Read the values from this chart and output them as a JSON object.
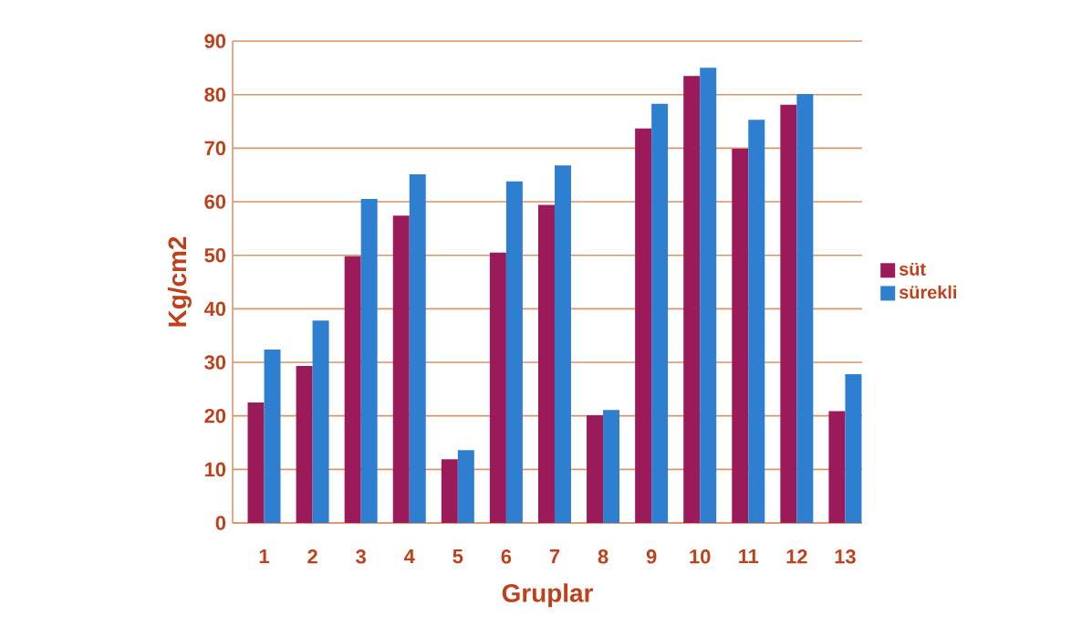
{
  "chart_data": {
    "type": "bar",
    "xlabel": "Gruplar",
    "ylabel": "Kg/cm2",
    "categories": [
      "1",
      "2",
      "3",
      "4",
      "5",
      "6",
      "7",
      "8",
      "9",
      "10",
      "11",
      "12",
      "13"
    ],
    "series": [
      {
        "name": "süt",
        "color": "#9b1b5a",
        "values": [
          22.5,
          29.3,
          49.8,
          57.4,
          11.9,
          50.5,
          59.4,
          20.1,
          73.7,
          83.5,
          69.9,
          78.1,
          20.9
        ]
      },
      {
        "name": "sürekli",
        "color": "#2f7fd0",
        "values": [
          32.4,
          37.8,
          60.5,
          65.1,
          13.6,
          63.8,
          66.8,
          21.1,
          78.3,
          85,
          75.3,
          80.1,
          27.8
        ]
      }
    ],
    "ylim": [
      0,
      90
    ],
    "yticks": [
      0,
      10,
      20,
      30,
      40,
      50,
      60,
      70,
      80,
      90
    ],
    "grid": "y",
    "legend": "right"
  }
}
